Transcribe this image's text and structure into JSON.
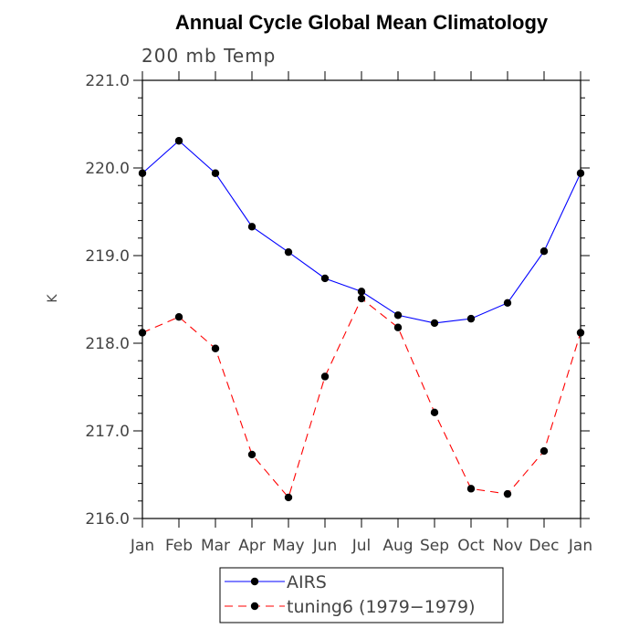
{
  "chart_data": {
    "type": "line",
    "title": "Annual Cycle Global Mean Climatology",
    "subtitle": "200 mb Temp",
    "xlabel": "",
    "ylabel": "K",
    "categories": [
      "Jan",
      "Feb",
      "Mar",
      "Apr",
      "May",
      "Jun",
      "Jul",
      "Aug",
      "Sep",
      "Oct",
      "Nov",
      "Dec",
      "Jan"
    ],
    "ylim": [
      216.0,
      221.0
    ],
    "yticks": [
      "216.0",
      "217.0",
      "218.0",
      "219.0",
      "220.0",
      "221.0"
    ],
    "grid": false,
    "legend_position": "bottom",
    "series": [
      {
        "name": "AIRS",
        "color": "#0000ff",
        "line_style": "solid",
        "values": [
          219.94,
          220.31,
          219.94,
          219.33,
          219.04,
          218.74,
          218.59,
          218.32,
          218.23,
          218.28,
          218.46,
          219.05,
          219.94
        ]
      },
      {
        "name": "tuning6 (1979−1979)",
        "color": "#ff0000",
        "line_style": "dashed",
        "values": [
          218.12,
          218.3,
          217.94,
          216.73,
          216.24,
          217.62,
          218.51,
          218.18,
          217.21,
          216.34,
          216.28,
          216.77,
          218.12
        ]
      }
    ]
  }
}
